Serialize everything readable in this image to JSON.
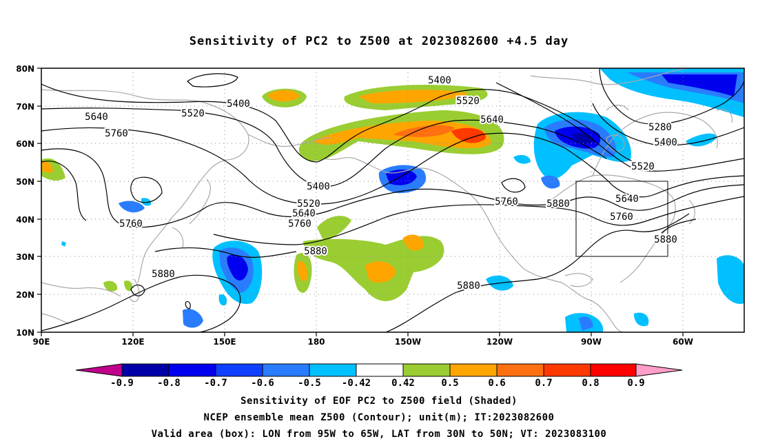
{
  "title": "Sensitivity of PC2 to Z500 at 2023082600 +4.5 day",
  "lat_labels": [
    "80N",
    "70N",
    "60N",
    "50N",
    "40N",
    "30N",
    "20N",
    "10N"
  ],
  "lon_labels": [
    "90E",
    "120E",
    "150E",
    "180",
    "150W",
    "120W",
    "90W",
    "60W"
  ],
  "contour_labels": [
    {
      "text": "5400",
      "id": "c1"
    },
    {
      "text": "5400",
      "id": "c2"
    },
    {
      "text": "5520",
      "id": "c3"
    },
    {
      "text": "5520",
      "id": "c4"
    },
    {
      "text": "5640",
      "id": "c5"
    },
    {
      "text": "5640",
      "id": "c6"
    },
    {
      "text": "5760",
      "id": "c7"
    },
    {
      "text": "5400",
      "id": "c8"
    },
    {
      "text": "5520",
      "id": "c9"
    },
    {
      "text": "5640",
      "id": "c10"
    },
    {
      "text": "5760",
      "id": "c11"
    },
    {
      "text": "5880",
      "id": "c12"
    },
    {
      "text": "5760",
      "id": "c13"
    },
    {
      "text": "5880",
      "id": "c14"
    },
    {
      "text": "5280",
      "id": "c15"
    },
    {
      "text": "5400",
      "id": "c16"
    },
    {
      "text": "5520",
      "id": "c17"
    },
    {
      "text": "5640",
      "id": "c18"
    },
    {
      "text": "5760",
      "id": "c19"
    },
    {
      "text": "5880",
      "id": "c20"
    },
    {
      "text": "5760",
      "id": "c21"
    },
    {
      "text": "5880",
      "id": "c22"
    },
    {
      "text": "5880",
      "id": "c23"
    }
  ],
  "colorbar": {
    "labels": [
      "-0.9",
      "-0.8",
      "-0.7",
      "-0.6",
      "-0.5",
      "-0.42",
      "0.42",
      "0.5",
      "0.6",
      "0.7",
      "0.8",
      "0.9"
    ],
    "colors": [
      "#c0008a",
      "#0000a8",
      "#0000ee",
      "#1040ff",
      "#2a7cff",
      "#00c0ff",
      "#ffffff",
      "#9acd32",
      "#ffa500",
      "#ff7010",
      "#ff3a00",
      "#ff0000",
      "#ff9ec8"
    ]
  },
  "captions": {
    "line1": "Sensitivity of EOF PC2 to Z500 field (Shaded)",
    "line2": "NCEP ensemble mean Z500 (Contour); unit(m); IT:2023082600",
    "line3": "Valid area (box): LON from 95W to 65W, LAT from 30N to 50N; VT: 2023083100"
  }
}
